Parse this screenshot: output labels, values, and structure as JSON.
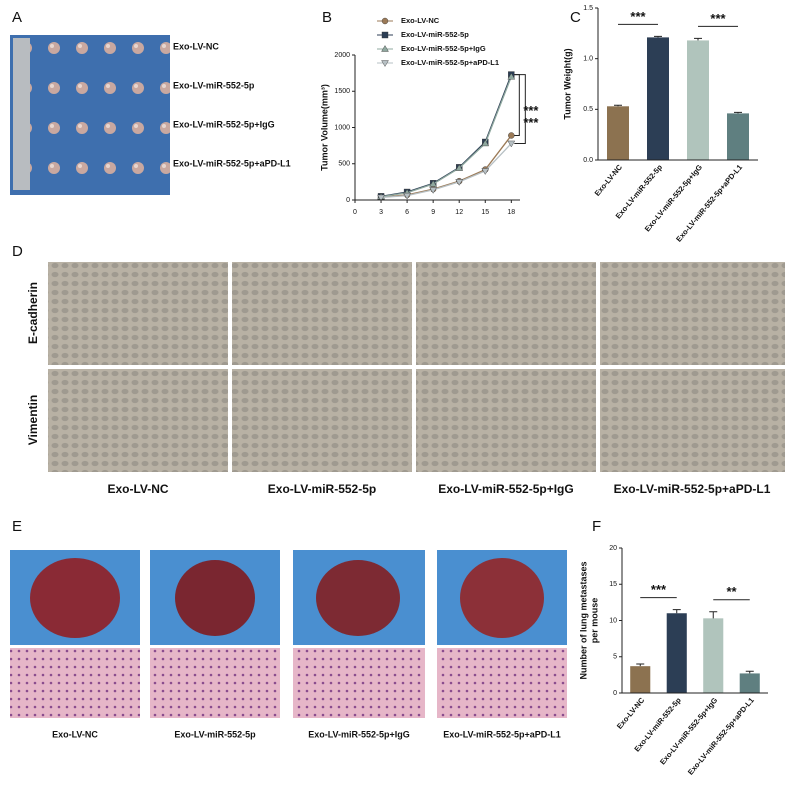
{
  "panel_labels": [
    "A",
    "B",
    "C",
    "D",
    "E",
    "F"
  ],
  "panel_a": {
    "labels": [
      "Exo-LV-NC",
      "Exo-LV-miR-552-5p",
      "Exo-LV-miR-552-5p+IgG",
      "Exo-LV-miR-552-5p+aPD-L1"
    ]
  },
  "panel_d": {
    "rows": [
      "E-cadherin",
      "Vimentin"
    ],
    "columns": [
      "Exo-LV-NC",
      "Exo-LV-miR-552-5p",
      "Exo-LV-miR-552-5p+IgG",
      "Exo-LV-miR-552-5p+aPD-L1"
    ]
  },
  "panel_e": {
    "columns": [
      "Exo-LV-NC",
      "Exo-LV-miR-552-5p",
      "Exo-LV-miR-552-5p+IgG",
      "Exo-LV-miR-552-5p+aPD-L1"
    ]
  },
  "chart_data": [
    {
      "type": "line",
      "ylabel": "Tumor Volume(mm³)",
      "x": [
        3,
        6,
        9,
        12,
        15,
        18
      ],
      "xlim": [
        0,
        19
      ],
      "xticks": [
        0,
        3,
        6,
        9,
        12,
        15,
        18
      ],
      "ylim": [
        0,
        2000
      ],
      "yticks": [
        0,
        500,
        1000,
        1500,
        2000
      ],
      "series": [
        {
          "name": "Exo-LV-NC",
          "color": "#9b7a57",
          "marker": "circle",
          "values": [
            40,
            70,
            150,
            260,
            420,
            890
          ]
        },
        {
          "name": "Exo-LV-miR-552-5p",
          "color": "#2c3e55",
          "marker": "square",
          "values": [
            50,
            110,
            230,
            450,
            800,
            1730
          ]
        },
        {
          "name": "Exo-LV-miR-552-5p+IgG",
          "color": "#8fa89f",
          "marker": "triangle-up",
          "values": [
            45,
            100,
            220,
            440,
            780,
            1700
          ]
        },
        {
          "name": "Exo-LV-miR-552-5p+aPD-L1",
          "color": "#b7c0c4",
          "marker": "triangle-down",
          "values": [
            35,
            60,
            140,
            250,
            400,
            780
          ]
        }
      ],
      "annotations": [
        "***",
        "***"
      ]
    },
    {
      "type": "bar",
      "ylabel": "Tumor Weight(g)",
      "categories": [
        "Exo-LV-NC",
        "Exo-LV-miR-552-5p",
        "Exo-LV-miR-552-5p+IgG",
        "Exo-LV-miR-552-5p+aPD-L1"
      ],
      "values": [
        0.53,
        1.21,
        1.18,
        0.46
      ],
      "errors": [
        0.01,
        0.01,
        0.02,
        0.01
      ],
      "colors": [
        "#8c7250",
        "#2c3e55",
        "#b0c4bc",
        "#5f7f80"
      ],
      "ylim": [
        0,
        1.5
      ],
      "yticks": [
        {
          "value": 0,
          "label": "0.0"
        },
        0.5,
        {
          "value": 1,
          "label": "1.0"
        },
        1.5
      ],
      "annotations": [
        "***",
        "***"
      ]
    },
    {
      "type": "bar",
      "ylabel": [
        "Number of lung metastases",
        "per mouse"
      ],
      "categories": [
        "Exo-LV-NC",
        "Exo-LV-miR-552-5p",
        "Exo-LV-miR-552-5p+IgG",
        "Exo-LV-miR-552-5p+aPD-L1"
      ],
      "values": [
        3.7,
        11.0,
        10.3,
        2.7
      ],
      "errors": [
        0.3,
        0.5,
        0.9,
        0.3
      ],
      "colors": [
        "#8c7250",
        "#2c3e55",
        "#b0c4bc",
        "#5f7f80"
      ],
      "ylim": [
        0,
        20
      ],
      "yticks": [
        0,
        5,
        10,
        15,
        20
      ],
      "annotations": [
        "***",
        "**"
      ]
    }
  ]
}
